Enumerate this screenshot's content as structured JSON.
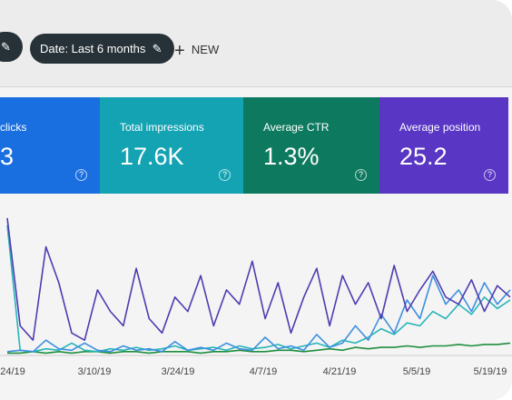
{
  "toolbar": {
    "date_chip": "Date: Last 6 months",
    "new_button": "NEW"
  },
  "cards": [
    {
      "label": "clicks",
      "value": "3",
      "color": "#1a6fe0"
    },
    {
      "label": "Total impressions",
      "value": "17.6K",
      "color": "#14a3b3"
    },
    {
      "label": "Average CTR",
      "value": "1.3%",
      "color": "#0d7a60"
    },
    {
      "label": "Average position",
      "value": "25.2",
      "color": "#5a36c4"
    }
  ],
  "chart_data": {
    "type": "line",
    "ylim": [
      0,
      100
    ],
    "x_labels": [
      "24/19",
      "3/10/19",
      "3/24/19",
      "4/7/19",
      "4/21/19",
      "5/5/19",
      "5/19/19"
    ],
    "series": [
      {
        "color": "#4f3bb0",
        "values": [
          95,
          20,
          10,
          75,
          50,
          15,
          10,
          45,
          30,
          20,
          60,
          25,
          15,
          40,
          30,
          55,
          20,
          45,
          35,
          65,
          25,
          50,
          15,
          40,
          60,
          20,
          55,
          35,
          50,
          25,
          62,
          30,
          45,
          58,
          40,
          35,
          52,
          30,
          48,
          40
        ]
      },
      {
        "color": "#3d8fe0",
        "values": [
          2,
          3,
          2,
          10,
          4,
          3,
          8,
          3,
          2,
          6,
          3,
          4,
          2,
          9,
          3,
          5,
          3,
          8,
          4,
          3,
          12,
          4,
          6,
          3,
          14,
          5,
          8,
          20,
          10,
          28,
          15,
          38,
          25,
          55,
          35,
          45,
          30,
          50,
          35,
          45
        ]
      },
      {
        "color": "#26b5b8",
        "values": [
          90,
          3,
          2,
          4,
          3,
          8,
          3,
          2,
          4,
          3,
          5,
          3,
          4,
          6,
          3,
          4,
          5,
          3,
          6,
          4,
          5,
          7,
          4,
          6,
          8,
          5,
          10,
          8,
          12,
          18,
          14,
          22,
          20,
          30,
          25,
          35,
          28,
          40,
          32,
          38
        ]
      },
      {
        "color": "#1e8e3e",
        "values": [
          1,
          1,
          2,
          1,
          2,
          1,
          2,
          2,
          1,
          2,
          2,
          1,
          2,
          2,
          2,
          1,
          2,
          2,
          3,
          2,
          2,
          3,
          3,
          2,
          3,
          4,
          3,
          5,
          4,
          5,
          5,
          6,
          5,
          6,
          6,
          7,
          6,
          7,
          7,
          8
        ]
      }
    ]
  }
}
